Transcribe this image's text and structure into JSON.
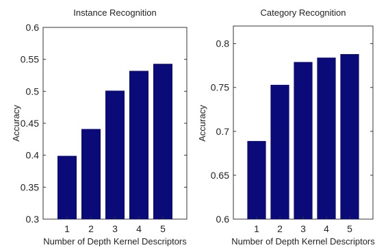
{
  "chart_data": [
    {
      "type": "bar",
      "title": "Instance Recognition",
      "xlabel": "Number of Depth Kernel Descriptors",
      "ylabel": "Accuracy",
      "categories": [
        "1",
        "2",
        "3",
        "4",
        "5"
      ],
      "values": [
        0.399,
        0.441,
        0.501,
        0.532,
        0.543
      ],
      "ylim": [
        0.3,
        0.6
      ],
      "yticks": [
        "0.3",
        "0.35",
        "0.4",
        "0.45",
        "0.5",
        "0.55",
        "0.6"
      ],
      "grid": false,
      "bar_color": "#0a0a78"
    },
    {
      "type": "bar",
      "title": "Category Recognition",
      "xlabel": "Number of Depth Kernel Descriptors",
      "ylabel": "Accuracy",
      "categories": [
        "1",
        "2",
        "3",
        "4",
        "5"
      ],
      "values": [
        0.689,
        0.753,
        0.779,
        0.784,
        0.788
      ],
      "ylim": [
        0.6,
        0.82
      ],
      "yticks": [
        "0.6",
        "0.65",
        "0.7",
        "0.75",
        "0.8"
      ],
      "grid": false,
      "bar_color": "#0a0a78"
    }
  ]
}
